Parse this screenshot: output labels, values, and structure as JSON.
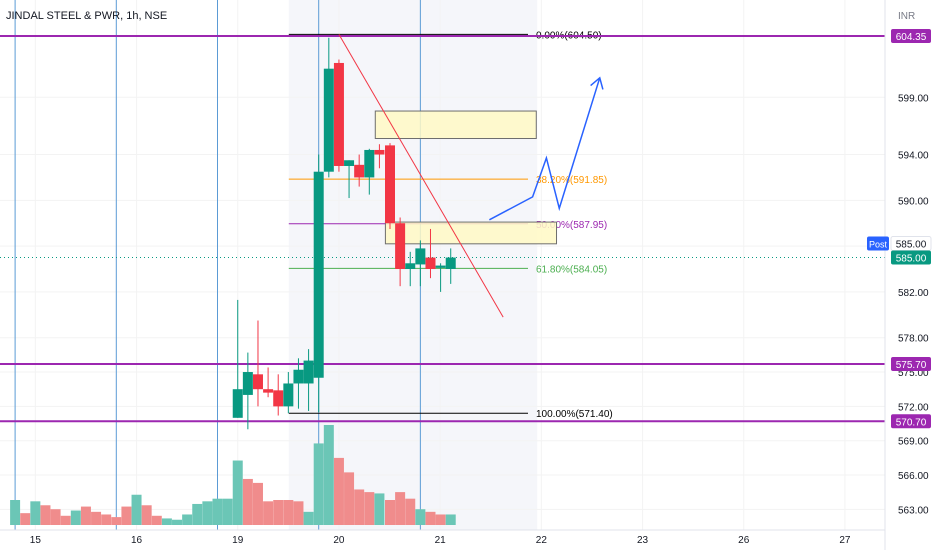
{
  "header": {
    "symbol_title": "JINDAL STEEL & PWR, 1h, NSE",
    "currency": "INR"
  },
  "chart_data": {
    "type": "candlestick",
    "title": "JINDAL STEEL & PWR, 1h, NSE",
    "ylabel": "INR",
    "ylim": [
      561.2,
      607.5
    ],
    "x_ticks": [
      {
        "label": "15",
        "t": 1.45
      },
      {
        "label": "16",
        "t": 12.45
      },
      {
        "label": "19",
        "t": 23.45
      },
      {
        "label": "20",
        "t": 34.45
      },
      {
        "label": "21",
        "t": 45.45
      },
      {
        "label": "22",
        "t": 56.45
      },
      {
        "label": "23",
        "t": 67.45
      },
      {
        "label": "26",
        "t": 78.45
      },
      {
        "label": "27",
        "t": 89.45
      }
    ],
    "y_ticks": [
      599.0,
      594.0,
      590.0,
      586.0,
      582.0,
      578.0,
      575.0,
      572.0,
      569.0,
      566.0,
      563.0
    ],
    "candles": [
      {
        "t": 23.45,
        "o": 571.0,
        "h": 581.3,
        "l": 571.0,
        "c": 573.5
      },
      {
        "t": 24.55,
        "o": 573.0,
        "h": 576.7,
        "l": 570.0,
        "c": 575.0
      },
      {
        "t": 25.65,
        "o": 574.8,
        "h": 579.5,
        "l": 572.0,
        "c": 573.5
      },
      {
        "t": 26.75,
        "o": 573.5,
        "h": 575.4,
        "l": 572.8,
        "c": 573.2
      },
      {
        "t": 27.85,
        "o": 573.4,
        "h": 574.8,
        "l": 571.2,
        "c": 572.0
      },
      {
        "t": 28.95,
        "o": 572.0,
        "h": 575.0,
        "l": 571.4,
        "c": 574.0
      },
      {
        "t": 30.05,
        "o": 574.0,
        "h": 576.2,
        "l": 571.8,
        "c": 575.2
      },
      {
        "t": 31.15,
        "o": 574.0,
        "h": 577.0,
        "l": 571.6,
        "c": 576.0
      },
      {
        "t": 32.25,
        "o": 574.5,
        "h": 594.0,
        "l": 571.5,
        "c": 592.5
      },
      {
        "t": 33.35,
        "o": 592.5,
        "h": 604.2,
        "l": 592.0,
        "c": 601.5
      },
      {
        "t": 34.45,
        "o": 602.0,
        "h": 602.3,
        "l": 592.5,
        "c": 593.0
      },
      {
        "t": 35.55,
        "o": 593.0,
        "h": 593.5,
        "l": 590.2,
        "c": 593.5
      },
      {
        "t": 36.65,
        "o": 593.1,
        "h": 594.0,
        "l": 591.2,
        "c": 592.0
      },
      {
        "t": 37.75,
        "o": 592.0,
        "h": 594.5,
        "l": 590.5,
        "c": 594.4
      },
      {
        "t": 38.85,
        "o": 594.4,
        "h": 594.9,
        "l": 592.8,
        "c": 594.0
      },
      {
        "t": 40.0,
        "o": 594.8,
        "h": 595.0,
        "l": 587.5,
        "c": 588.0
      },
      {
        "t": 41.1,
        "o": 588.0,
        "h": 588.5,
        "l": 582.5,
        "c": 584.0
      },
      {
        "t": 42.2,
        "o": 584.0,
        "h": 585.5,
        "l": 582.5,
        "c": 584.5
      },
      {
        "t": 43.3,
        "o": 584.4,
        "h": 586.5,
        "l": 582.5,
        "c": 585.8
      },
      {
        "t": 44.4,
        "o": 585.0,
        "h": 587.5,
        "l": 583.2,
        "c": 584.0
      },
      {
        "t": 45.5,
        "o": 584.1,
        "h": 584.5,
        "l": 582.0,
        "c": 584.3
      },
      {
        "t": 46.6,
        "o": 584.0,
        "h": 585.8,
        "l": 582.7,
        "c": 585.0
      }
    ],
    "volume": [
      {
        "t": -0.75,
        "v": 19,
        "dir": "up"
      },
      {
        "t": 0.35,
        "v": 9,
        "dir": "down"
      },
      {
        "t": 1.45,
        "v": 18,
        "dir": "up"
      },
      {
        "t": 2.55,
        "v": 15,
        "dir": "down"
      },
      {
        "t": 3.65,
        "v": 12,
        "dir": "down"
      },
      {
        "t": 4.75,
        "v": 7,
        "dir": "down"
      },
      {
        "t": 5.85,
        "v": 11,
        "dir": "up"
      },
      {
        "t": 6.95,
        "v": 14,
        "dir": "down"
      },
      {
        "t": 8.05,
        "v": 10,
        "dir": "down"
      },
      {
        "t": 9.15,
        "v": 8,
        "dir": "down"
      },
      {
        "t": 10.25,
        "v": 6,
        "dir": "down"
      },
      {
        "t": 11.35,
        "v": 14,
        "dir": "down"
      },
      {
        "t": 12.45,
        "v": 23,
        "dir": "up"
      },
      {
        "t": 13.55,
        "v": 15,
        "dir": "down"
      },
      {
        "t": 14.65,
        "v": 7,
        "dir": "down"
      },
      {
        "t": 15.75,
        "v": 5,
        "dir": "up"
      },
      {
        "t": 16.85,
        "v": 4,
        "dir": "up"
      },
      {
        "t": 17.95,
        "v": 8,
        "dir": "up"
      },
      {
        "t": 19.05,
        "v": 16,
        "dir": "up"
      },
      {
        "t": 20.15,
        "v": 18,
        "dir": "up"
      },
      {
        "t": 21.25,
        "v": 20,
        "dir": "up"
      },
      {
        "t": 22.35,
        "v": 20,
        "dir": "up"
      },
      {
        "t": 23.45,
        "v": 49,
        "dir": "up"
      },
      {
        "t": 24.55,
        "v": 35,
        "dir": "down"
      },
      {
        "t": 25.65,
        "v": 32,
        "dir": "down"
      },
      {
        "t": 26.75,
        "v": 18,
        "dir": "down"
      },
      {
        "t": 27.85,
        "v": 19,
        "dir": "down"
      },
      {
        "t": 28.95,
        "v": 19,
        "dir": "down"
      },
      {
        "t": 30.05,
        "v": 18,
        "dir": "down"
      },
      {
        "t": 31.15,
        "v": 10,
        "dir": "up"
      },
      {
        "t": 32.25,
        "v": 62,
        "dir": "up"
      },
      {
        "t": 33.35,
        "v": 76,
        "dir": "up"
      },
      {
        "t": 34.45,
        "v": 51,
        "dir": "down"
      },
      {
        "t": 35.55,
        "v": 40,
        "dir": "down"
      },
      {
        "t": 36.65,
        "v": 27,
        "dir": "down"
      },
      {
        "t": 37.75,
        "v": 25,
        "dir": "down"
      },
      {
        "t": 38.85,
        "v": 24,
        "dir": "up"
      },
      {
        "t": 40.0,
        "v": 19,
        "dir": "down"
      },
      {
        "t": 41.1,
        "v": 25,
        "dir": "down"
      },
      {
        "t": 42.2,
        "v": 20,
        "dir": "down"
      },
      {
        "t": 43.3,
        "v": 12,
        "dir": "up"
      },
      {
        "t": 44.4,
        "v": 10,
        "dir": "down"
      },
      {
        "t": 45.5,
        "v": 8,
        "dir": "down"
      },
      {
        "t": 46.6,
        "v": 8,
        "dir": "up"
      }
    ],
    "horizontal_levels": [
      {
        "price": 604.35,
        "label": "604.35",
        "color": "#9c27b0"
      },
      {
        "price": 575.7,
        "label": "575.70",
        "color": "#9c27b0"
      },
      {
        "price": 570.7,
        "label": "570.70",
        "color": "#9c27b0"
      }
    ],
    "current_price": {
      "price": 585.0,
      "label": "585.00",
      "tag": "Post",
      "color": "#089981",
      "post_color": "#2962ff"
    },
    "fibonacci": {
      "t_start": 29.0,
      "t_end": 55.0,
      "levels": [
        {
          "price": 604.5,
          "label": "0.00%(604.50)",
          "color": "#000000"
        },
        {
          "price": 591.85,
          "label": "38.20%(591.85)",
          "color": "#ff9800"
        },
        {
          "price": 587.95,
          "label": "50.00%(587.95)",
          "color": "#9c27b0"
        },
        {
          "price": 584.05,
          "label": "61.80%(584.05)",
          "color": "#4caf50"
        },
        {
          "price": 571.4,
          "label": "100.00%(571.40)",
          "color": "#000000"
        }
      ]
    },
    "shaded_range": {
      "t_start": 29.0,
      "t_end": 56.0
    },
    "vertical_lines_t": [
      -0.75,
      10.25,
      21.25,
      32.25,
      43.3
    ],
    "zones": [
      {
        "t1": 38.4,
        "t2": 55.9,
        "top": 597.8,
        "bottom": 595.4
      },
      {
        "t1": 39.5,
        "t2": 58.1,
        "top": 588.1,
        "bottom": 586.2
      }
    ],
    "trendline": {
      "t1": 34.45,
      "p1": 604.5,
      "t2": 52.3,
      "p2": 579.8,
      "color": "#f23645"
    },
    "projection": {
      "points": [
        [
          50.8,
          588.3
        ],
        [
          55.5,
          590.3
        ],
        [
          57.0,
          593.7
        ],
        [
          58.4,
          589.3
        ],
        [
          62.8,
          600.7
        ]
      ],
      "color": "#2962ff"
    },
    "colors": {
      "up": "#089981",
      "down": "#f23645",
      "vol_up": "#6bc6b6",
      "vol_down": "#f08c8c",
      "grid": "#f3f3f3",
      "vline": "#5b9bd5"
    }
  }
}
